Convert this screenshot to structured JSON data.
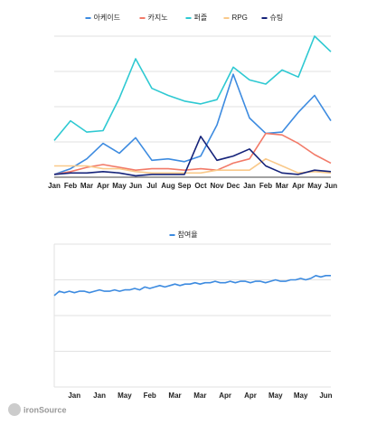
{
  "chart_data": [
    {
      "type": "line",
      "categories": [
        "Jan",
        "Feb",
        "Mar",
        "Apr",
        "May",
        "Jun",
        "Jul",
        "Aug",
        "Sep",
        "Oct",
        "Nov",
        "Dec",
        "Jan",
        "Feb",
        "Mar",
        "Apr",
        "May",
        "Jun"
      ],
      "series": [
        {
          "name": "아케이드",
          "color": "#3d8be0",
          "values": [
            2,
            6,
            13,
            24,
            17,
            28,
            12,
            13,
            11,
            15,
            37,
            73,
            42,
            31,
            32,
            46,
            58,
            40
          ]
        },
        {
          "name": "카지노",
          "color": "#f27a68",
          "values": [
            2,
            4,
            7,
            9,
            7,
            5,
            6,
            6,
            5,
            6,
            5,
            10,
            13,
            31,
            30,
            24,
            16,
            10
          ]
        },
        {
          "name": "퍼즐",
          "color": "#2ec9d2",
          "values": [
            26,
            40,
            32,
            33,
            56,
            84,
            63,
            58,
            54,
            52,
            55,
            78,
            69,
            66,
            76,
            71,
            100,
            89
          ]
        },
        {
          "name": "RPG",
          "color": "#f9c98a",
          "values": [
            8,
            8,
            8,
            6,
            6,
            4,
            3,
            3,
            3,
            3,
            5,
            5,
            5,
            13,
            8,
            3,
            4,
            3
          ]
        },
        {
          "name": "슈팅",
          "color": "#15237a",
          "values": [
            2,
            3,
            3,
            4,
            3,
            1,
            2,
            2,
            2,
            29,
            12,
            15,
            20,
            8,
            3,
            2,
            5,
            4
          ]
        }
      ],
      "ylim": [
        0,
        100
      ],
      "grid": true
    },
    {
      "type": "line",
      "categories": [
        null,
        null,
        null,
        null,
        "Jan",
        null,
        null,
        null,
        null,
        "Jan",
        null,
        null,
        null,
        null,
        "May",
        null,
        null,
        null,
        null,
        "Feb",
        null,
        null,
        null,
        null,
        "Mar",
        null,
        null,
        null,
        null,
        "Mar",
        null,
        null,
        null,
        null,
        "Apr",
        null,
        null,
        null,
        null,
        "Apr",
        null,
        null,
        null,
        null,
        "May",
        null,
        null,
        null,
        null,
        "May",
        null,
        null,
        null,
        null,
        "Jun",
        null
      ],
      "series": [
        {
          "name": "참여율",
          "color": "#3d8be0",
          "values": [
            64,
            67,
            66,
            67,
            66,
            67,
            67,
            66,
            67,
            68,
            67,
            67,
            68,
            67,
            68,
            68,
            69,
            68,
            70,
            69,
            70,
            71,
            70,
            71,
            72,
            71,
            72,
            72,
            73,
            72,
            73,
            73,
            74,
            73,
            73,
            74,
            73,
            74,
            74,
            73,
            74,
            74,
            73,
            74,
            75,
            74,
            74,
            75,
            75,
            76,
            75,
            76,
            78,
            77,
            78,
            78
          ]
        }
      ],
      "ylim": [
        0,
        100
      ],
      "grid": true
    }
  ],
  "watermark": "ironSource"
}
